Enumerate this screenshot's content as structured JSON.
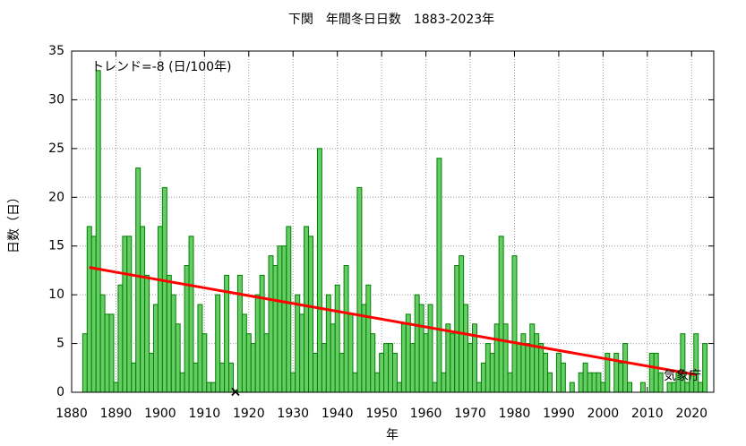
{
  "chart_data": {
    "type": "bar",
    "title": "下関　年間冬日日数　1883-2023年",
    "xlabel": "年",
    "ylabel": "日数（日）",
    "annotations": [
      "トレンド=-8 (日/100年)",
      "気象庁"
    ],
    "x": [
      1883,
      1884,
      1885,
      1886,
      1887,
      1888,
      1889,
      1890,
      1891,
      1892,
      1893,
      1894,
      1895,
      1896,
      1897,
      1898,
      1899,
      1900,
      1901,
      1902,
      1903,
      1904,
      1905,
      1906,
      1907,
      1908,
      1909,
      1910,
      1911,
      1912,
      1913,
      1914,
      1915,
      1916,
      1917,
      1918,
      1919,
      1920,
      1921,
      1922,
      1923,
      1924,
      1925,
      1926,
      1927,
      1928,
      1929,
      1930,
      1931,
      1932,
      1933,
      1934,
      1935,
      1936,
      1937,
      1938,
      1939,
      1940,
      1941,
      1942,
      1943,
      1944,
      1945,
      1946,
      1947,
      1948,
      1949,
      1950,
      1951,
      1952,
      1953,
      1954,
      1955,
      1956,
      1957,
      1958,
      1959,
      1960,
      1961,
      1962,
      1963,
      1964,
      1965,
      1966,
      1967,
      1968,
      1969,
      1970,
      1971,
      1972,
      1973,
      1974,
      1975,
      1976,
      1977,
      1978,
      1979,
      1980,
      1981,
      1982,
      1983,
      1984,
      1985,
      1986,
      1987,
      1988,
      1989,
      1990,
      1991,
      1992,
      1993,
      1994,
      1995,
      1996,
      1997,
      1998,
      1999,
      2000,
      2001,
      2002,
      2003,
      2004,
      2005,
      2006,
      2007,
      2008,
      2009,
      2010,
      2011,
      2012,
      2013,
      2014,
      2015,
      2016,
      2017,
      2018,
      2019,
      2020,
      2021,
      2022,
      2023
    ],
    "values": [
      6,
      17,
      16,
      33,
      10,
      8,
      8,
      1,
      11,
      16,
      16,
      3,
      23,
      17,
      12,
      4,
      9,
      17,
      21,
      12,
      10,
      7,
      2,
      13,
      16,
      3,
      9,
      6,
      1,
      1,
      10,
      3,
      12,
      3,
      null,
      12,
      8,
      6,
      5,
      10,
      12,
      6,
      14,
      13,
      15,
      15,
      17,
      2,
      10,
      8,
      17,
      16,
      4,
      25,
      5,
      10,
      7,
      11,
      4,
      13,
      8,
      2,
      21,
      9,
      11,
      6,
      2,
      4,
      5,
      5,
      4,
      1,
      7,
      8,
      5,
      10,
      9,
      6,
      9,
      1,
      24,
      2,
      7,
      6,
      13,
      14,
      9,
      5,
      7,
      1,
      3,
      5,
      4,
      7,
      16,
      7,
      2,
      14,
      5,
      6,
      5,
      7,
      6,
      5,
      4,
      2,
      0,
      4,
      3,
      0,
      1,
      0,
      2,
      3,
      2,
      2,
      2,
      1,
      4,
      0,
      4,
      3,
      5,
      1,
      0,
      0,
      1,
      0,
      4,
      4,
      2,
      0,
      1,
      1,
      2,
      6,
      1,
      2,
      6,
      1,
      5
    ],
    "color": "#66cc66",
    "edge_color": "#008000",
    "trend": {
      "x": [
        1884,
        2021
      ],
      "values": [
        12.8,
        1.8
      ],
      "color": "#ff0000"
    },
    "xlim": [
      1880,
      2025
    ],
    "xticks": [
      1880,
      1890,
      1900,
      1910,
      1920,
      1930,
      1940,
      1950,
      1960,
      1970,
      1980,
      1990,
      2000,
      2010,
      2020
    ],
    "ylim": [
      0,
      35
    ],
    "yticks": [
      0,
      5,
      10,
      15,
      20,
      25,
      30,
      35
    ],
    "grid": true
  }
}
